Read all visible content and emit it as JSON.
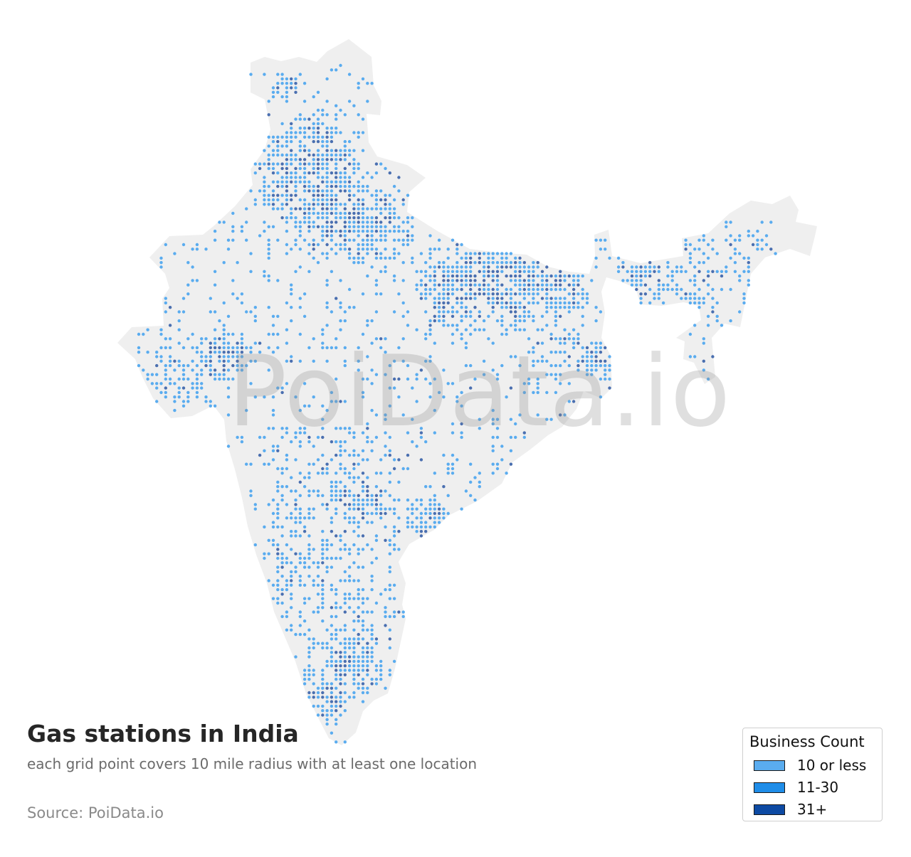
{
  "title": "Gas stations in India",
  "subtitle": "each grid point covers 10 mile radius with at least one location",
  "source": "Source: PoiData.io",
  "watermark": "PoiData.io",
  "legend": {
    "title": "Business Count",
    "items": [
      {
        "label": "10 or less",
        "color": "#5aacef"
      },
      {
        "label": "11-30",
        "color": "#1f8de8"
      },
      {
        "label": "31+",
        "color": "#0d4aa3"
      }
    ]
  },
  "colors": {
    "land": "#efefef",
    "dot_low": "#5aacef",
    "dot_high": "#4a6fb0"
  }
}
